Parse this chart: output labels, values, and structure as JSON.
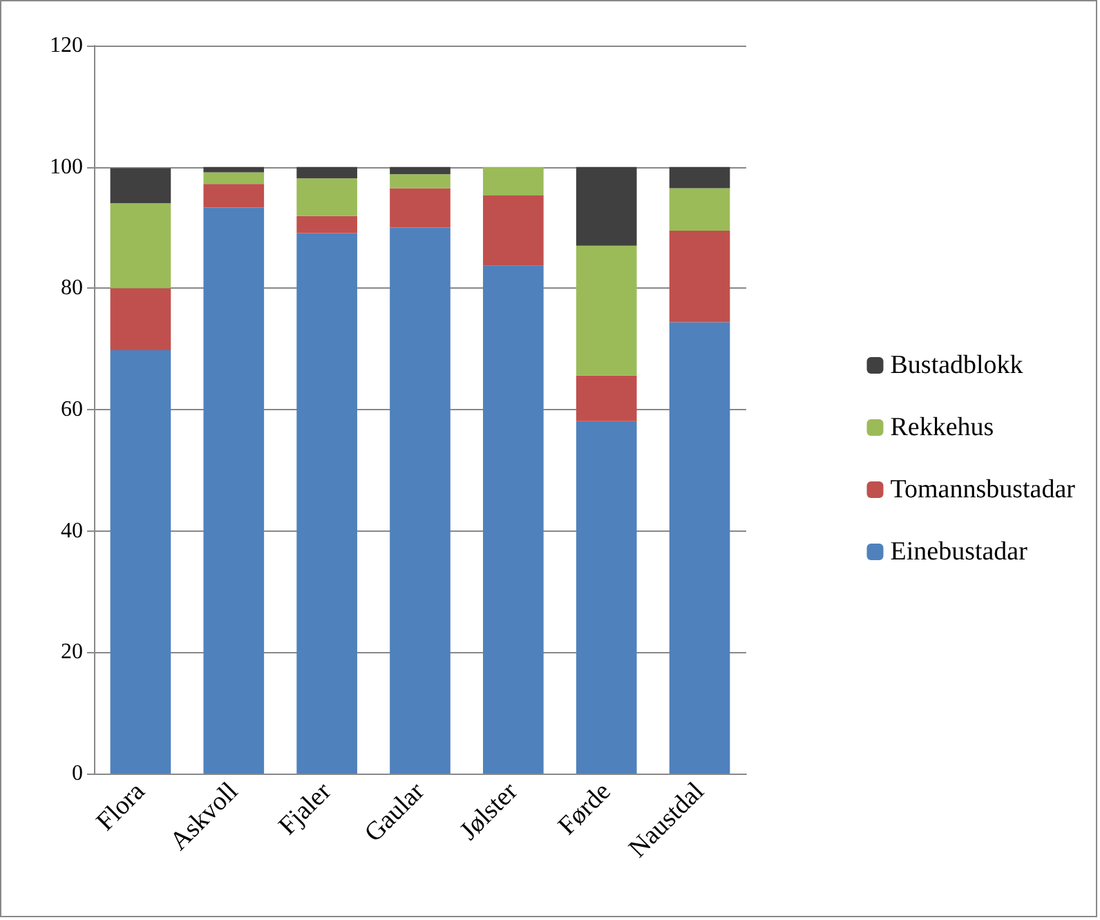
{
  "chart_data": {
    "type": "bar",
    "stacked": true,
    "categories": [
      "Flora",
      "Askvoll",
      "Fjaler",
      "Gaular",
      "Jølster",
      "Førde",
      "Naustdal"
    ],
    "series": [
      {
        "name": "Einebustadar",
        "color": "#4f81bd",
        "values": [
          69.8,
          93.3,
          89.1,
          90,
          83.7,
          58.1,
          74.4
        ]
      },
      {
        "name": "Tomannsbustadar",
        "color": "#c0504d",
        "values": [
          10.2,
          3.9,
          2.8,
          6.5,
          11.6,
          7.5,
          15.1
        ]
      },
      {
        "name": "Rekkehus",
        "color": "#9bbb59",
        "values": [
          14,
          1.9,
          6.2,
          2.3,
          4.7,
          21.4,
          7
        ]
      },
      {
        "name": "Bustadblokk",
        "color": "#404040",
        "values": [
          5.8,
          0.9,
          1.9,
          1.2,
          0,
          13,
          3.5
        ]
      }
    ],
    "ylim": [
      0,
      120
    ],
    "yticks": [
      0,
      20,
      40,
      60,
      80,
      100,
      120
    ],
    "grid": "y",
    "legend": "right"
  }
}
